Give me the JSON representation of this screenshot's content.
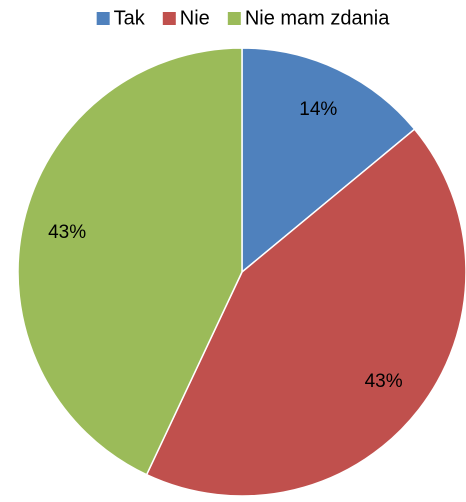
{
  "chart_data": {
    "type": "pie",
    "categories": [
      "Tak",
      "Nie",
      "Nie mam zdania"
    ],
    "values": [
      14,
      43,
      43
    ],
    "value_labels": [
      "14%",
      "43%",
      "43%"
    ],
    "colors": [
      "#4f81bd",
      "#c0504d",
      "#9bbb59"
    ],
    "legend": "top"
  }
}
